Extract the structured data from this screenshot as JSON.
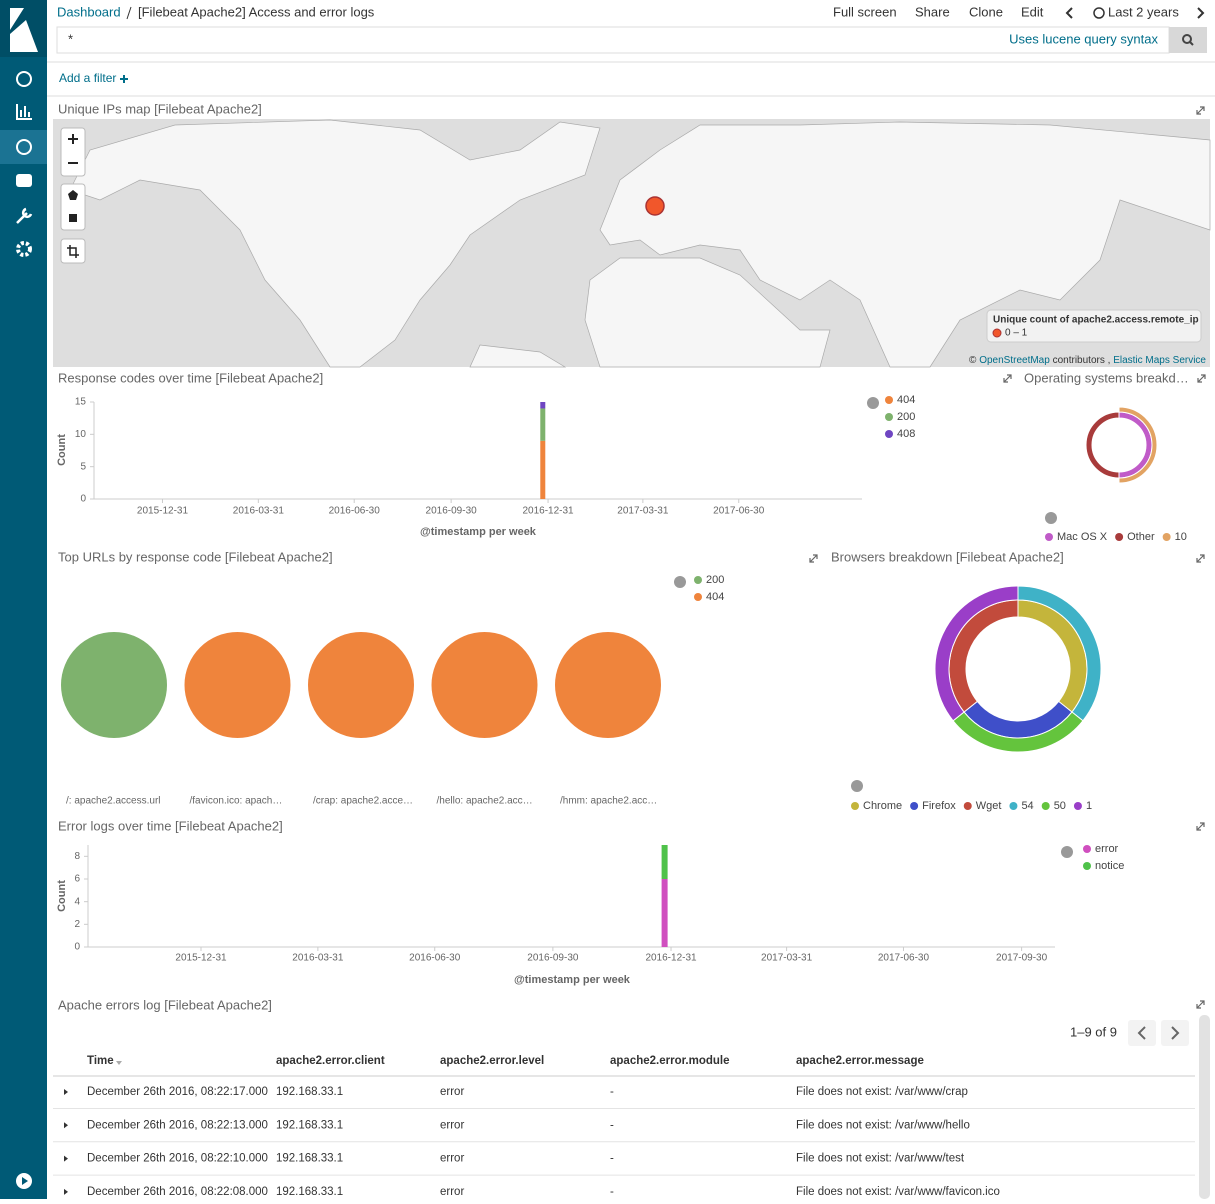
{
  "header": {
    "breadcrumb": [
      "Dashboard",
      "[Filebeat Apache2] Access and error logs"
    ],
    "menu": [
      "Full screen",
      "Share",
      "Clone",
      "Edit"
    ],
    "time_range": "Last 2 years"
  },
  "query": {
    "text": "*",
    "hint": "Uses lucene query syntax"
  },
  "add_filter": "Add a filter",
  "map": {
    "title": "Unique IPs map [Filebeat Apache2]",
    "legend_title": "Unique count of apache2.access.remote_ip",
    "legend_range": "0 – 1",
    "point_count": 1,
    "attribution": {
      "symbol": "©",
      "source": "OpenStreetMap",
      "middle": "contributors ,",
      "service": "Elastic Maps Service"
    }
  },
  "chart_data": [
    {
      "type": "bar",
      "title": "Response codes over time [Filebeat Apache2]",
      "x_label": "@timestamp per week",
      "y_label": "Count",
      "x": [
        "2016-12-26"
      ],
      "series": [
        {
          "name": "404",
          "color": "#ef843c",
          "values": [
            9
          ]
        },
        {
          "name": "200",
          "color": "#7eb26d",
          "values": [
            5
          ]
        },
        {
          "name": "408",
          "color": "#6f46c2",
          "values": [
            1
          ]
        }
      ],
      "xlim": [
        "2015-10-27",
        "2017-10-25"
      ],
      "xticks": [
        "2015-12-31",
        "2016-03-31",
        "2016-06-30",
        "2016-09-30",
        "2016-12-31",
        "2017-03-31",
        "2017-06-30"
      ],
      "ylim": [
        0,
        15
      ],
      "yticks": [
        0,
        5,
        10,
        15
      ]
    },
    {
      "type": "donut",
      "title": "Operating systems breakd…",
      "rings": [
        {
          "labels": [
            "Mac OS X",
            "Other"
          ],
          "colors": [
            "#c05bc8",
            "#a83b3b"
          ],
          "values": [
            7,
            7
          ]
        },
        {
          "labels": [
            "10"
          ],
          "colors": [
            "#e2a363"
          ],
          "values": [
            7
          ]
        }
      ]
    },
    {
      "type": "pie",
      "title": "Top URLs by response code [Filebeat Apache2]",
      "categories": [
        "/: apache2.access.url",
        "/favicon.ico: apach…",
        "/crap: apache2.acce…",
        "/hello: apache2.acc…",
        "/hmm: apache2.acc…"
      ],
      "series": [
        {
          "name": "200",
          "color": "#7eb26d",
          "values": [
            5,
            null,
            null,
            null,
            null
          ]
        },
        {
          "name": "404",
          "color": "#ef843c",
          "values": [
            null,
            3,
            2,
            2,
            2
          ]
        }
      ]
    },
    {
      "type": "donut",
      "title": "Browsers breakdown [Filebeat Apache2]",
      "rings": [
        {
          "labels": [
            "Chrome",
            "Firefox",
            "Wget"
          ],
          "colors": [
            "#c4b53b",
            "#3f4fc9",
            "#c24b3c"
          ],
          "values": [
            5,
            4,
            5
          ]
        },
        {
          "labels": [
            "54",
            "50",
            "1"
          ],
          "colors": [
            "#3fb2c7",
            "#64c43d",
            "#9a3ec8"
          ],
          "values": [
            5,
            4,
            5
          ]
        }
      ]
    },
    {
      "type": "bar",
      "title": "Error logs over time [Filebeat Apache2]",
      "x_label": "@timestamp per week",
      "y_label": "Count",
      "x": [
        "2016-12-26"
      ],
      "series": [
        {
          "name": "error",
          "color": "#d04fbf",
          "values": [
            6
          ]
        },
        {
          "name": "notice",
          "color": "#4fc24a",
          "values": [
            3
          ]
        }
      ],
      "xlim": [
        "2015-10-04",
        "2017-10-26"
      ],
      "xticks": [
        "2015-12-31",
        "2016-03-31",
        "2016-06-30",
        "2016-09-30",
        "2016-12-31",
        "2017-03-31",
        "2017-06-30",
        "2017-09-30"
      ],
      "ylim": [
        0,
        9
      ],
      "yticks": [
        0,
        2,
        4,
        6,
        8
      ]
    }
  ],
  "table": {
    "title": "Apache errors log [Filebeat Apache2]",
    "pagination": "1–9 of 9",
    "columns": [
      "Time",
      "apache2.error.client",
      "apache2.error.level",
      "apache2.error.module",
      "apache2.error.message"
    ],
    "rows": [
      [
        "December 26th 2016, 08:22:17.000",
        "192.168.33.1",
        "error",
        "-",
        "File does not exist: /var/www/crap"
      ],
      [
        "December 26th 2016, 08:22:13.000",
        "192.168.33.1",
        "error",
        "-",
        "File does not exist: /var/www/hello"
      ],
      [
        "December 26th 2016, 08:22:10.000",
        "192.168.33.1",
        "error",
        "-",
        "File does not exist: /var/www/test"
      ],
      [
        "December 26th 2016, 08:22:08.000",
        "192.168.33.1",
        "error",
        "-",
        "File does not exist: /var/www/favicon.ico"
      ]
    ]
  }
}
